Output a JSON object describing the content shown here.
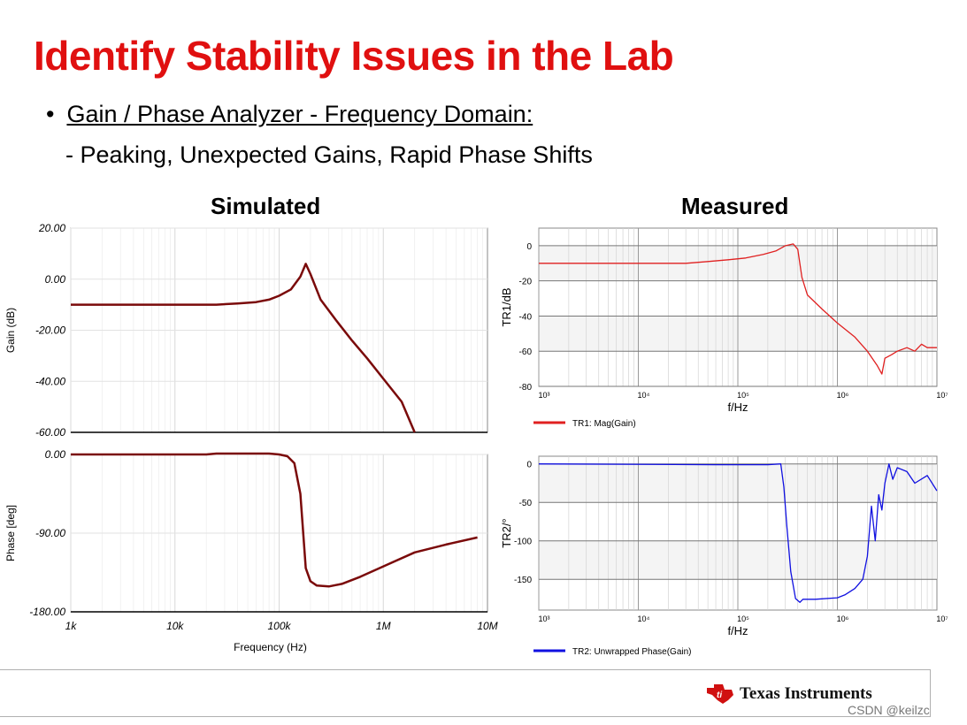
{
  "slide": {
    "title": "Identify Stability Issues in the Lab",
    "bullet": "Gain / Phase Analyzer - Frequency Domain:",
    "subbullet": "- Peaking, Unexpected Gains, Rapid Phase Shifts",
    "left_heading": "Simulated",
    "right_heading": "Measured"
  },
  "footer": {
    "brand": "Texas Instruments",
    "watermark": "CSDN @keilzc"
  },
  "colors": {
    "title": "#e01010",
    "sim_trace": "#7a0a0a",
    "meas_gain_trace": "#e02020",
    "meas_phase_trace": "#1010e0"
  },
  "chart_data": [
    {
      "type": "line",
      "name": "sim_gain",
      "ylabel": "Gain (dB)",
      "xscale": "log",
      "xlim": [
        1000,
        10000000
      ],
      "ylim": [
        -60,
        20
      ],
      "yticks": [
        "20.00",
        "0.00",
        "-20.00",
        "-40.00",
        "-60.00"
      ],
      "x": [
        1000,
        10000,
        25000,
        40000,
        60000,
        80000,
        100000,
        130000,
        160000,
        180000,
        200000,
        250000,
        350000,
        500000,
        700000,
        1000000,
        1500000,
        2000000
      ],
      "y": [
        -10,
        -10,
        -10,
        -9.5,
        -9,
        -8,
        -6.5,
        -4,
        1,
        6,
        2,
        -8,
        -16,
        -24,
        -31,
        -39,
        -48,
        -60
      ]
    },
    {
      "type": "line",
      "name": "sim_phase",
      "ylabel": "Phase [deg]",
      "xlabel": "Frequency (Hz)",
      "xscale": "log",
      "xlim": [
        1000,
        10000000
      ],
      "ylim": [
        -180,
        0
      ],
      "yticks": [
        "0.00",
        "-90.00",
        "-180.00"
      ],
      "xticks": [
        "1k",
        "10k",
        "100k",
        "1M",
        "10M"
      ],
      "x": [
        1000,
        20000,
        25000,
        80000,
        100000,
        120000,
        140000,
        160000,
        180000,
        200000,
        230000,
        300000,
        400000,
        600000,
        1000000,
        2000000,
        4000000,
        8000000
      ],
      "y": [
        0,
        0,
        1,
        1,
        0,
        -2,
        -10,
        -45,
        -130,
        -145,
        -150,
        -151,
        -148,
        -140,
        -128,
        -112,
        -103,
        -95
      ]
    },
    {
      "type": "line",
      "name": "meas_gain",
      "ylabel": "TR1/dB",
      "xlabel": "f/Hz",
      "legend": "TR1: Mag(Gain)",
      "xscale": "log",
      "xlim": [
        1000,
        10000000
      ],
      "ylim": [
        -80,
        10
      ],
      "yticks": [
        "0",
        "-20",
        "-40",
        "-60",
        "-80"
      ],
      "x": [
        1000,
        30000,
        50000,
        80000,
        120000,
        180000,
        240000,
        300000,
        360000,
        400000,
        440000,
        500000,
        700000,
        1000000,
        1500000,
        2000000,
        2500000,
        2800000,
        3000000,
        3500000,
        4000000,
        5000000,
        6000000,
        7000000,
        8000000,
        10000000
      ],
      "y": [
        -10,
        -10,
        -9,
        -8,
        -7,
        -5,
        -3,
        0,
        1,
        -2,
        -18,
        -28,
        -36,
        -44,
        -52,
        -60,
        -68,
        -73,
        -64,
        -62,
        -60,
        -58,
        -60,
        -56,
        -58,
        -58
      ]
    },
    {
      "type": "line",
      "name": "meas_phase",
      "ylabel": "TR2/°",
      "xlabel": "f/Hz",
      "legend": "TR2: Unwrapped Phase(Gain)",
      "xscale": "log",
      "xlim": [
        1000,
        10000000
      ],
      "ylim": [
        -190,
        10
      ],
      "yticks": [
        "0",
        "-50",
        "-100",
        "-150"
      ],
      "x": [
        1000,
        60000,
        200000,
        270000,
        290000,
        310000,
        340000,
        380000,
        420000,
        450000,
        600000,
        1000000,
        1200000,
        1500000,
        1800000,
        2000000,
        2200000,
        2400000,
        2600000,
        2800000,
        3000000,
        3300000,
        3600000,
        4000000,
        5000000,
        6000000,
        8000000,
        10000000
      ],
      "y": [
        0,
        -1,
        -1,
        0,
        -30,
        -80,
        -140,
        -175,
        -180,
        -176,
        -176,
        -174,
        -170,
        -162,
        -150,
        -120,
        -55,
        -100,
        -40,
        -60,
        -25,
        0,
        -20,
        -5,
        -10,
        -25,
        -15,
        -35
      ]
    }
  ],
  "measured_labels": {
    "x_ticks": [
      "10³",
      "10⁴",
      "10⁵",
      "10⁶",
      "10⁷"
    ]
  }
}
